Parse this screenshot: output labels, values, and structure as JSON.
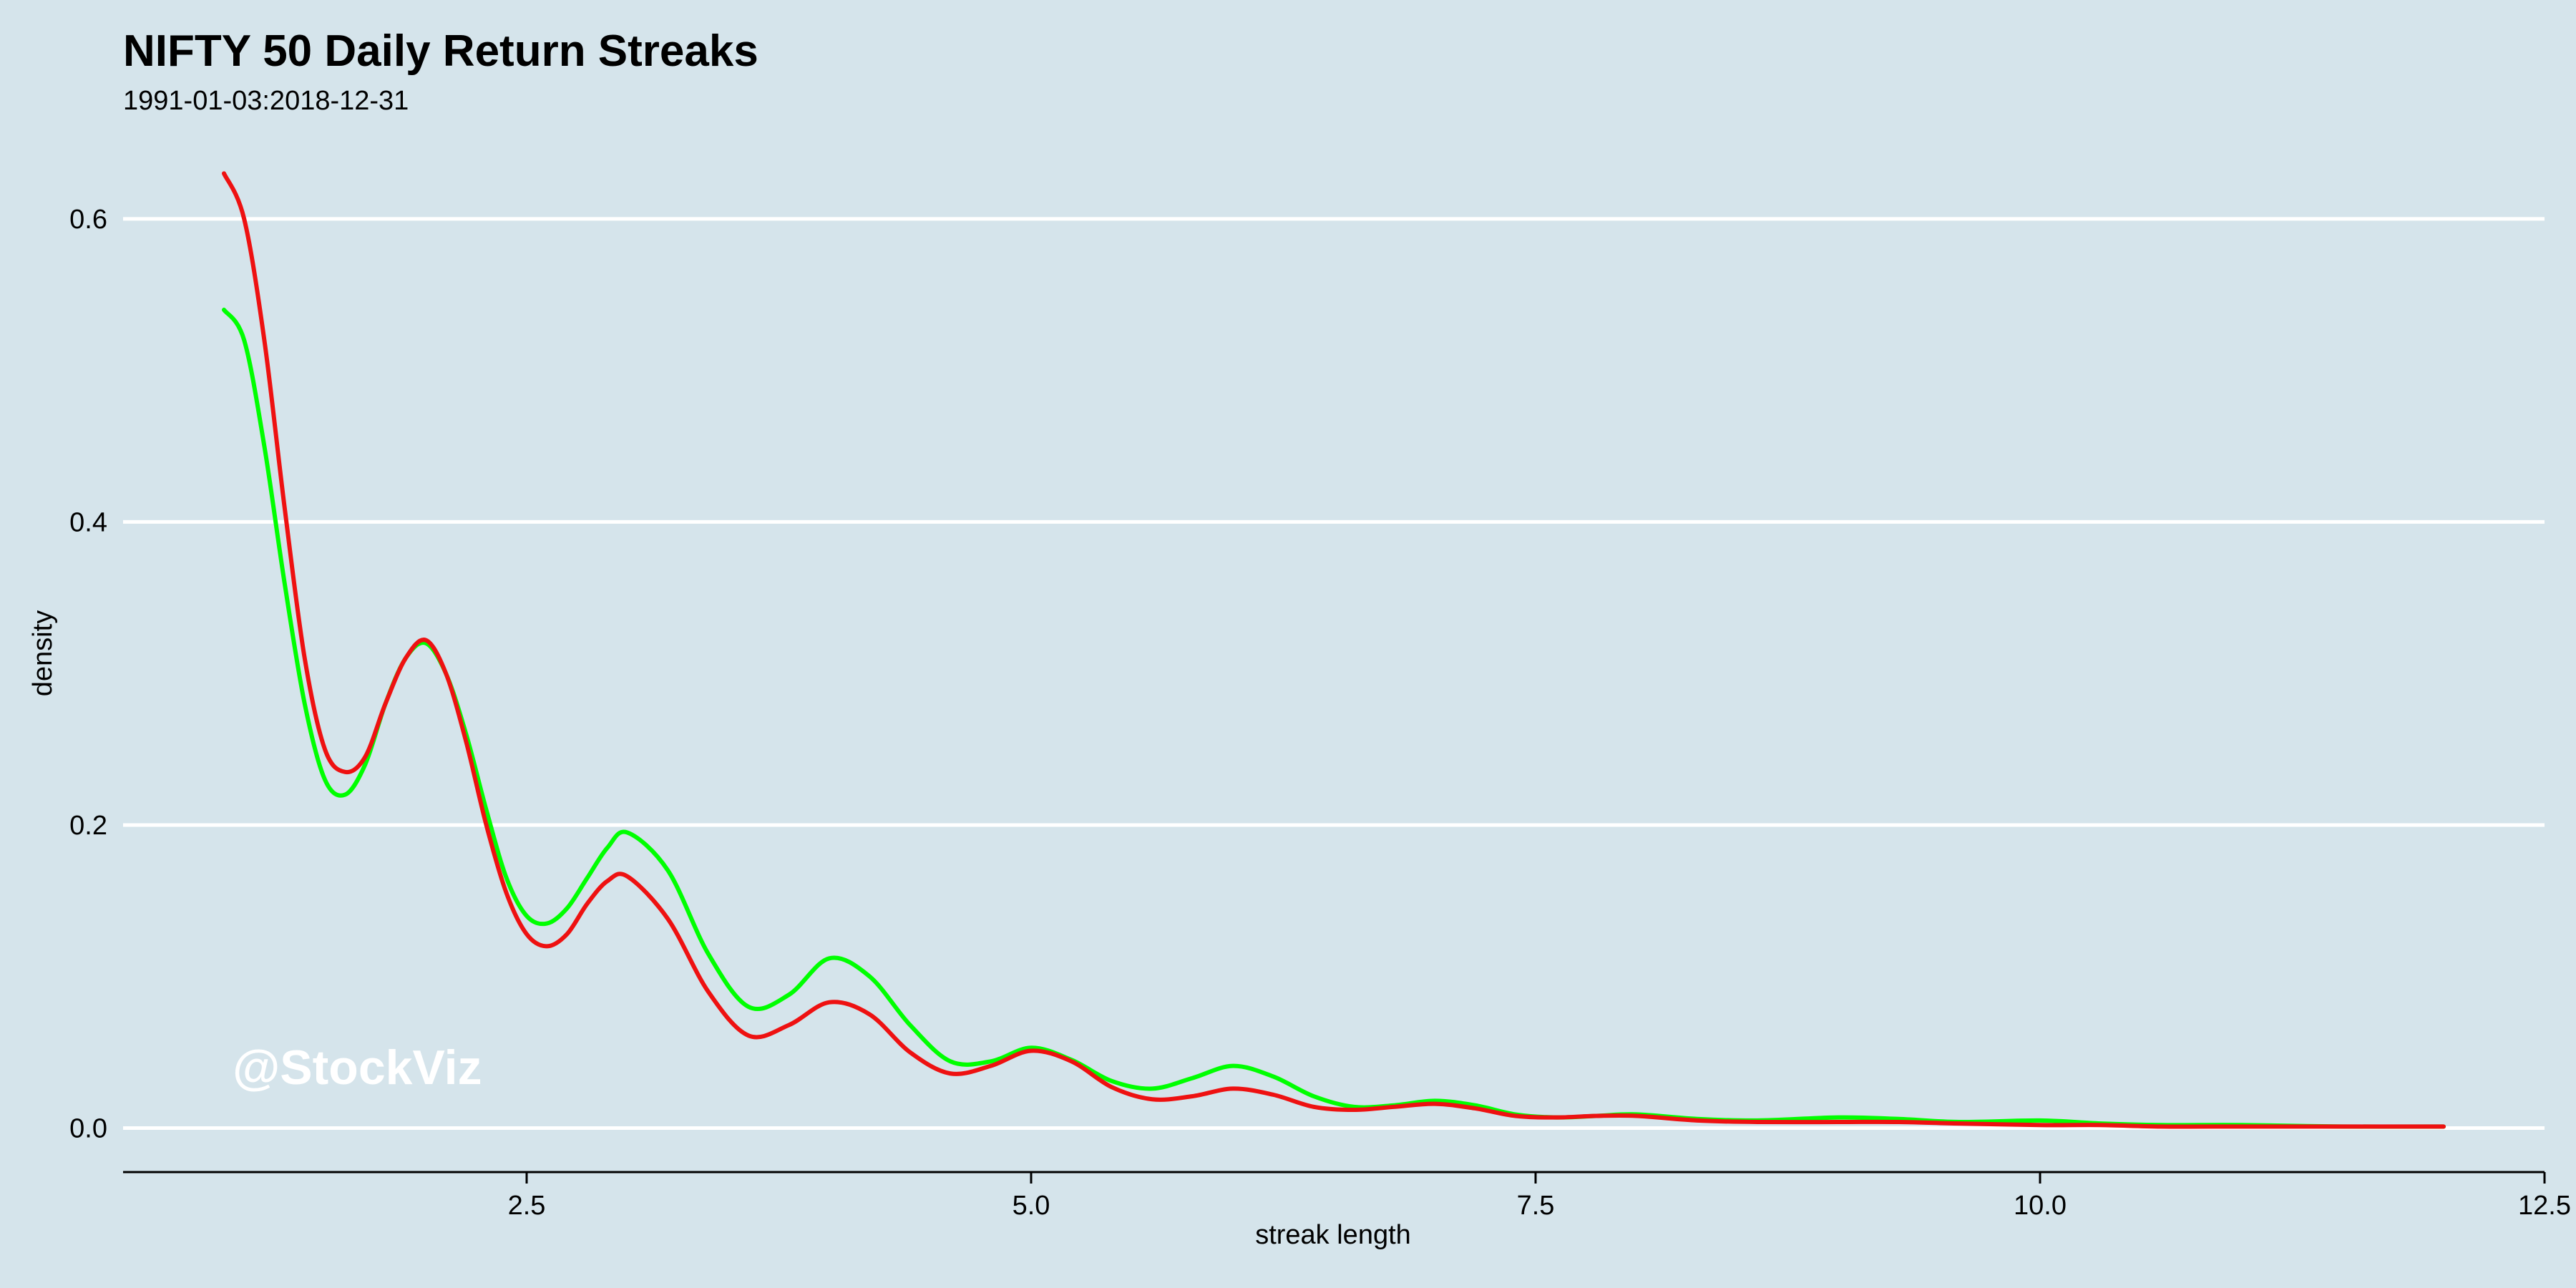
{
  "chart_data": {
    "type": "line",
    "title": "NIFTY 50 Daily Return Streaks",
    "subtitle": "1991-01-03:2018-12-31",
    "xlabel": "streak length",
    "ylabel": "density",
    "xlim": [
      0.5,
      12.5
    ],
    "ylim": [
      -0.03,
      0.65
    ],
    "xticks": [
      2.5,
      5.0,
      7.5,
      10.0,
      12.5
    ],
    "xtick_labels": [
      "2.5",
      "5.0",
      "7.5",
      "10.0",
      "12.5"
    ],
    "yticks": [
      0.0,
      0.2,
      0.4,
      0.6
    ],
    "ytick_labels": [
      "0.0",
      "0.2",
      "0.4",
      "0.6"
    ],
    "grid": "horizontal",
    "legend": "none",
    "watermark": "@StockViz",
    "series": [
      {
        "color": "#00ff00",
        "x": [
          1.0,
          1.1,
          1.2,
          1.3,
          1.4,
          1.5,
          1.6,
          1.7,
          1.8,
          1.9,
          2.0,
          2.1,
          2.2,
          2.3,
          2.4,
          2.5,
          2.6,
          2.7,
          2.8,
          2.9,
          3.0,
          3.2,
          3.4,
          3.6,
          3.8,
          4.0,
          4.2,
          4.4,
          4.6,
          4.8,
          5.0,
          5.2,
          5.4,
          5.6,
          5.8,
          6.0,
          6.2,
          6.4,
          6.6,
          6.8,
          7.0,
          7.2,
          7.4,
          7.6,
          7.8,
          8.0,
          8.3,
          8.6,
          9.0,
          9.3,
          9.6,
          10.0,
          10.3,
          10.6,
          11.0,
          11.5,
          12.0
        ],
        "y": [
          0.54,
          0.52,
          0.45,
          0.36,
          0.28,
          0.23,
          0.22,
          0.24,
          0.28,
          0.31,
          0.32,
          0.3,
          0.26,
          0.21,
          0.165,
          0.14,
          0.135,
          0.145,
          0.165,
          0.185,
          0.195,
          0.17,
          0.115,
          0.08,
          0.088,
          0.112,
          0.1,
          0.068,
          0.044,
          0.044,
          0.053,
          0.045,
          0.031,
          0.026,
          0.033,
          0.041,
          0.034,
          0.021,
          0.014,
          0.015,
          0.018,
          0.015,
          0.009,
          0.007,
          0.008,
          0.009,
          0.006,
          0.005,
          0.007,
          0.006,
          0.004,
          0.005,
          0.003,
          0.002,
          0.002,
          0.001,
          0.001
        ]
      },
      {
        "color": "#ee1111",
        "x": [
          1.0,
          1.1,
          1.2,
          1.3,
          1.4,
          1.5,
          1.6,
          1.7,
          1.8,
          1.9,
          2.0,
          2.1,
          2.2,
          2.3,
          2.4,
          2.5,
          2.6,
          2.7,
          2.8,
          2.9,
          3.0,
          3.2,
          3.4,
          3.6,
          3.8,
          4.0,
          4.2,
          4.4,
          4.6,
          4.8,
          5.0,
          5.2,
          5.4,
          5.6,
          5.8,
          6.0,
          6.2,
          6.4,
          6.6,
          6.8,
          7.0,
          7.2,
          7.4,
          7.6,
          7.8,
          8.0,
          8.3,
          8.6,
          9.0,
          9.3,
          9.6,
          10.0,
          10.3,
          10.6,
          11.0,
          11.5,
          12.0
        ],
        "y": [
          0.63,
          0.6,
          0.52,
          0.41,
          0.31,
          0.25,
          0.235,
          0.245,
          0.28,
          0.31,
          0.322,
          0.3,
          0.255,
          0.2,
          0.155,
          0.128,
          0.12,
          0.128,
          0.148,
          0.163,
          0.166,
          0.138,
          0.09,
          0.061,
          0.068,
          0.083,
          0.075,
          0.05,
          0.036,
          0.041,
          0.051,
          0.044,
          0.027,
          0.019,
          0.021,
          0.026,
          0.022,
          0.014,
          0.012,
          0.014,
          0.016,
          0.013,
          0.008,
          0.007,
          0.008,
          0.008,
          0.005,
          0.004,
          0.004,
          0.004,
          0.003,
          0.002,
          0.002,
          0.001,
          0.001,
          0.001,
          0.001
        ]
      }
    ]
  }
}
